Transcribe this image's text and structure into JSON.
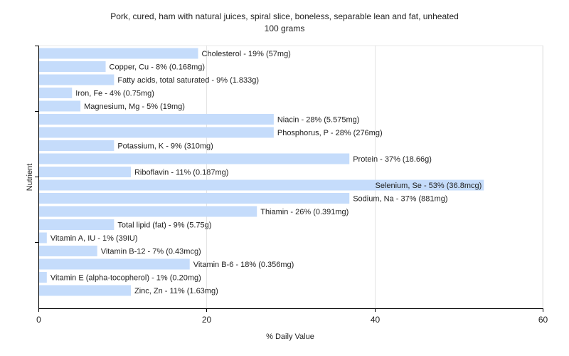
{
  "chart_data": {
    "type": "bar",
    "orientation": "horizontal",
    "title": [
      "Pork, cured, ham with natural juices, spiral slice, boneless, separable lean and fat, unheated",
      "100 grams"
    ],
    "xlabel": "% Daily Value",
    "ylabel": "Nutrient",
    "xlim": [
      0,
      60
    ],
    "xticks": [
      0,
      20,
      40,
      60
    ],
    "grid": true,
    "bar_color": "#c5dcfb",
    "bars": [
      {
        "label": "Cholesterol - 19% (57mg)",
        "value": 19
      },
      {
        "label": "Copper, Cu - 8% (0.168mg)",
        "value": 8
      },
      {
        "label": "Fatty acids, total saturated - 9% (1.833g)",
        "value": 9
      },
      {
        "label": "Iron, Fe - 4% (0.75mg)",
        "value": 4
      },
      {
        "label": "Magnesium, Mg - 5% (19mg)",
        "value": 5
      },
      {
        "label": "Niacin - 28% (5.575mg)",
        "value": 28
      },
      {
        "label": "Phosphorus, P - 28% (276mg)",
        "value": 28
      },
      {
        "label": "Potassium, K - 9% (310mg)",
        "value": 9
      },
      {
        "label": "Protein - 37% (18.66g)",
        "value": 37
      },
      {
        "label": "Riboflavin - 11% (0.187mg)",
        "value": 11
      },
      {
        "label": "Selenium, Se - 53% (36.8mcg)",
        "value": 53
      },
      {
        "label": "Sodium, Na - 37% (881mg)",
        "value": 37
      },
      {
        "label": "Thiamin - 26% (0.391mg)",
        "value": 26
      },
      {
        "label": "Total lipid (fat) - 9% (5.75g)",
        "value": 9
      },
      {
        "label": "Vitamin A, IU - 1% (39IU)",
        "value": 1
      },
      {
        "label": "Vitamin B-12 - 7% (0.43mcg)",
        "value": 7
      },
      {
        "label": "Vitamin B-6 - 18% (0.356mg)",
        "value": 18
      },
      {
        "label": "Vitamin E (alpha-tocopherol) - 1% (0.20mg)",
        "value": 1
      },
      {
        "label": "Zinc, Zn - 11% (1.63mg)",
        "value": 11
      }
    ]
  }
}
